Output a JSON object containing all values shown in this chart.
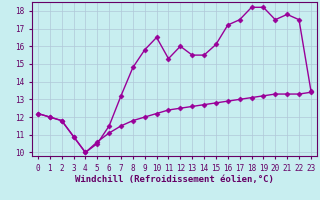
{
  "title": "",
  "xlabel": "Windchill (Refroidissement éolien,°C)",
  "ylabel": "",
  "background_color": "#c8eef0",
  "line_color": "#990099",
  "grid_color": "#b0c8d8",
  "x_line1": [
    0,
    1,
    2,
    3,
    4,
    5,
    6,
    7,
    8,
    9,
    10,
    11,
    12,
    13,
    14,
    15,
    16,
    17,
    18,
    19,
    20,
    21,
    22,
    23
  ],
  "y_line1": [
    12.2,
    12.0,
    11.8,
    10.9,
    10.0,
    10.5,
    11.5,
    13.2,
    14.8,
    15.8,
    16.5,
    15.3,
    16.0,
    15.5,
    15.5,
    16.1,
    17.2,
    17.5,
    18.2,
    18.2,
    17.5,
    17.8,
    17.5,
    13.5
  ],
  "x_line2": [
    0,
    1,
    2,
    3,
    4,
    5,
    6,
    7,
    8,
    9,
    10,
    11,
    12,
    13,
    14,
    15,
    16,
    17,
    18,
    19,
    20,
    21,
    22,
    23
  ],
  "y_line2": [
    12.2,
    12.0,
    11.8,
    10.9,
    10.0,
    10.6,
    11.1,
    11.5,
    11.8,
    12.0,
    12.2,
    12.4,
    12.5,
    12.6,
    12.7,
    12.8,
    12.9,
    13.0,
    13.1,
    13.2,
    13.3,
    13.3,
    13.3,
    13.4
  ],
  "ylim": [
    9.8,
    18.5
  ],
  "xlim": [
    -0.5,
    23.5
  ],
  "yticks": [
    10,
    11,
    12,
    13,
    14,
    15,
    16,
    17,
    18
  ],
  "xticks": [
    0,
    1,
    2,
    3,
    4,
    5,
    6,
    7,
    8,
    9,
    10,
    11,
    12,
    13,
    14,
    15,
    16,
    17,
    18,
    19,
    20,
    21,
    22,
    23
  ],
  "tick_fontsize": 5.5,
  "xlabel_fontsize": 6.5,
  "marker": "D",
  "markersize": 2.5,
  "linewidth": 1.0
}
